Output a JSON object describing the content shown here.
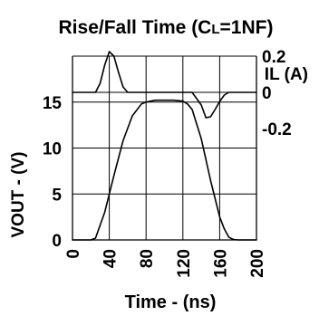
{
  "chart_data": {
    "type": "line",
    "title": {
      "prefix": "Rise/Fall Time (C",
      "sub": "L",
      "suffix": "=1NF)"
    },
    "xlabel": "Time - (ns)",
    "ylabel_left": "VOUT - (V)",
    "ylabel_right": "IL (A)",
    "xlim": [
      0,
      200
    ],
    "ylim_left": [
      0,
      20
    ],
    "ylim_right": [
      -0.25,
      0.25
    ],
    "grid": true,
    "x_ticks": [
      0,
      40,
      80,
      120,
      160,
      200
    ],
    "x_tick_labels": [
      "0",
      "40",
      "80",
      "120",
      "160",
      "200"
    ],
    "y_left_ticks": [
      0,
      5,
      10,
      15
    ],
    "y_left_tick_labels": [
      "0",
      "5",
      "10",
      "15"
    ],
    "y_right_ticks": [
      0.2,
      0,
      -0.2
    ],
    "y_right_tick_labels": [
      "0.2",
      "0",
      "-0.2"
    ],
    "series": [
      {
        "id": "vout",
        "axis": "left",
        "x": [
          0,
          20,
          25,
          35,
          45,
          55,
          65,
          75,
          80,
          85,
          90,
          100,
          110,
          120,
          125,
          130,
          140,
          150,
          160,
          165,
          170,
          175,
          180,
          200
        ],
        "y": [
          0,
          0,
          0.2,
          3.0,
          7.0,
          10.8,
          13.5,
          14.8,
          15.0,
          15.1,
          15.2,
          15.2,
          15.2,
          15.1,
          14.8,
          14.2,
          11.0,
          6.5,
          2.5,
          1.2,
          0.3,
          0.05,
          0,
          0
        ]
      },
      {
        "id": "il",
        "axis": "right",
        "x": [
          0,
          25,
          30,
          35,
          40,
          45,
          50,
          55,
          60,
          130,
          140,
          145,
          150,
          155,
          160,
          165,
          170,
          200
        ],
        "y": [
          0,
          0,
          0.05,
          0.15,
          0.225,
          0.2,
          0.11,
          0.03,
          0,
          0,
          -0.07,
          -0.14,
          -0.135,
          -0.095,
          -0.05,
          -0.015,
          0,
          0
        ]
      }
    ]
  }
}
